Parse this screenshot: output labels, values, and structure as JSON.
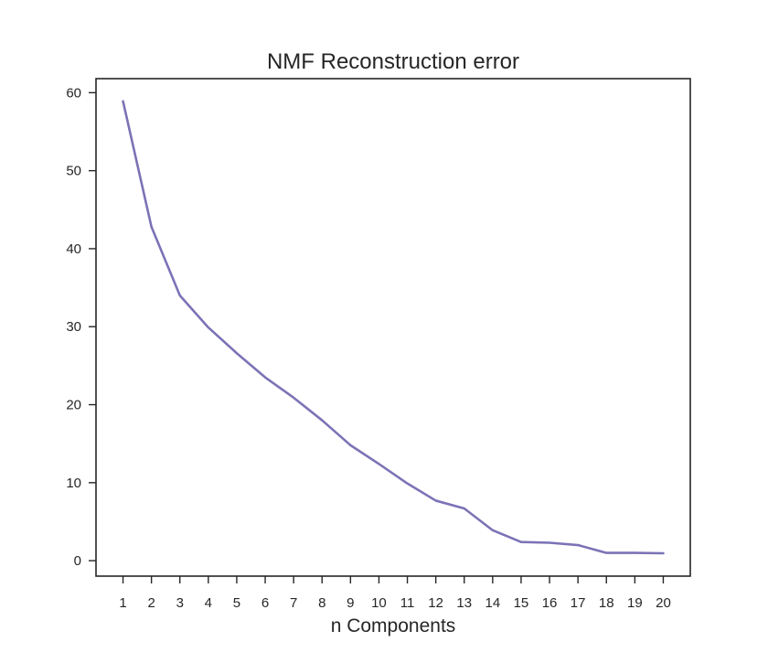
{
  "chart_data": {
    "type": "line",
    "title": "NMF Reconstruction error",
    "xlabel": "n Components",
    "ylabel": "",
    "x": [
      1,
      2,
      3,
      4,
      5,
      6,
      7,
      8,
      9,
      10,
      11,
      12,
      13,
      14,
      15,
      16,
      17,
      18,
      19,
      20
    ],
    "series": [
      {
        "values": [
          58.9,
          42.8,
          34.0,
          29.9,
          26.6,
          23.5,
          20.9,
          18.0,
          14.8,
          12.4,
          9.9,
          7.7,
          6.7,
          3.9,
          2.4,
          2.3,
          2.0,
          1.0,
          1.0,
          0.95
        ],
        "color": "#7b73b6"
      }
    ],
    "xticks": [
      1,
      2,
      3,
      4,
      5,
      6,
      7,
      8,
      9,
      10,
      11,
      12,
      13,
      14,
      15,
      16,
      17,
      18,
      19,
      20
    ],
    "yticks": [
      0,
      10,
      20,
      30,
      40,
      50,
      60
    ],
    "xlim": [
      0.05,
      20.95
    ],
    "ylim": [
      -1.98,
      61.8
    ],
    "grid": false,
    "legend": "none"
  }
}
